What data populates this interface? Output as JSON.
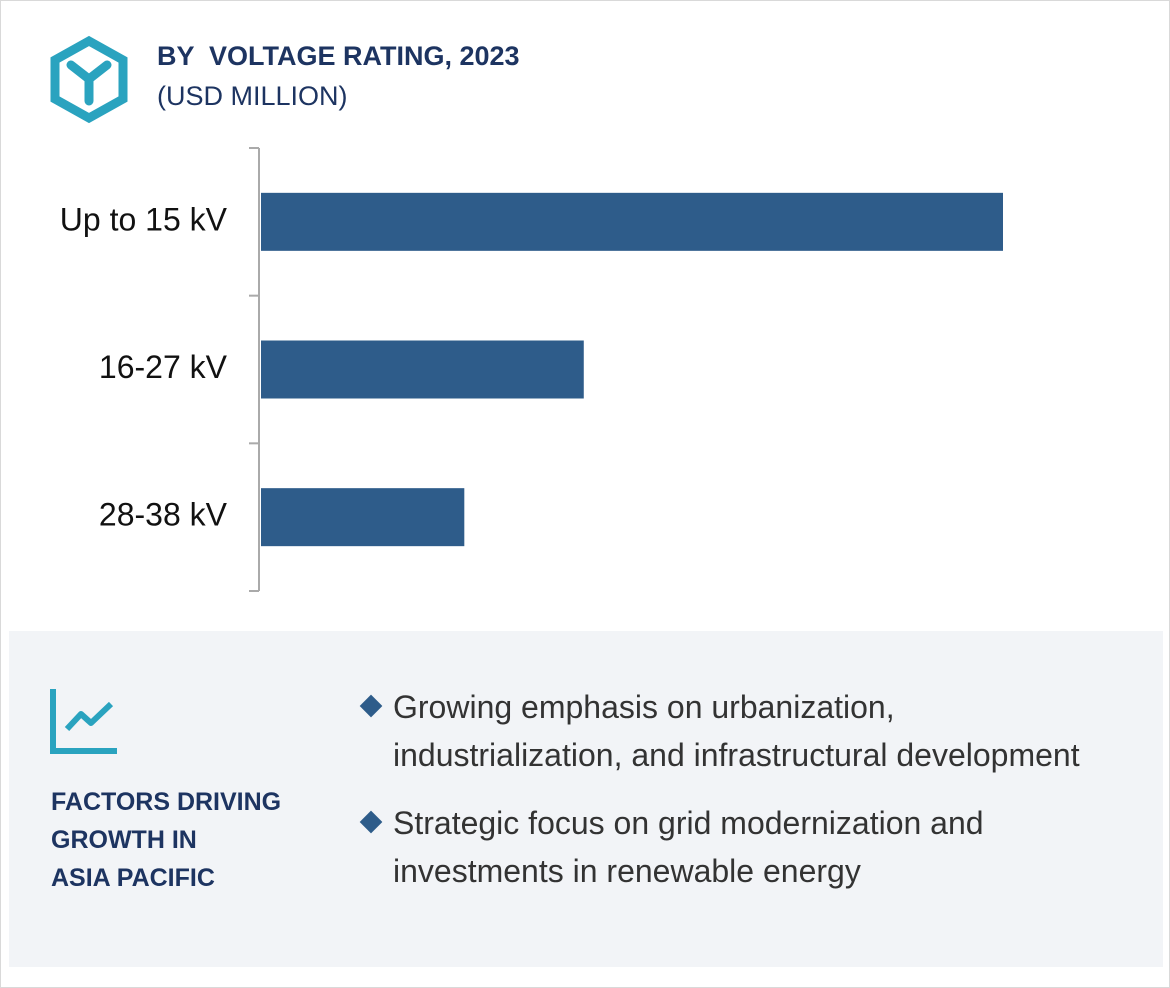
{
  "chart_data": {
    "type": "bar",
    "orientation": "horizontal",
    "title": "BY  VOLTAGE RATING, 2023",
    "subtitle": "(USD MILLION)",
    "categories": [
      "Up to 15 kV",
      "16-27 kV",
      "28-38 kV"
    ],
    "values": [
      100,
      43.5,
      27.4
    ],
    "color": "#2e5c8a",
    "xlim": [
      0,
      100
    ]
  },
  "factors": {
    "title_lines": [
      "FACTORS DRIVING",
      "GROWTH IN",
      "ASIA PACIFIC"
    ],
    "items": [
      "Growing emphasis on urbanization, industrialization, and infrastructural development",
      "Strategic focus on grid modernization and investments in renewable energy"
    ]
  }
}
